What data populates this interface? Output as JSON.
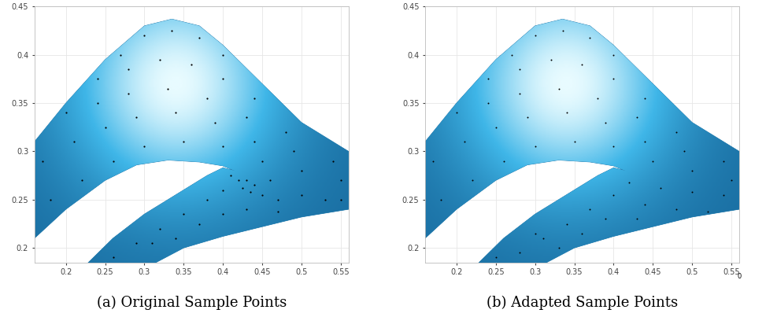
{
  "chart_data": [
    {
      "type": "scatter",
      "title": "(a) Original Sample Points",
      "xlim": [
        0.16,
        0.56
      ],
      "ylim": [
        0.185,
        0.45
      ],
      "xticks": [
        0.2,
        0.25,
        0.3,
        0.35,
        0.4,
        0.45,
        0.5,
        0.55
      ],
      "yticks": [
        0.2,
        0.25,
        0.3,
        0.35,
        0.4,
        0.45
      ],
      "grid": true,
      "tick_labels": true,
      "color": "#000000",
      "marker": "o",
      "surface": {
        "color": "#3fb6e8",
        "x": [
          0.16,
          0.2,
          0.25,
          0.3,
          0.335,
          0.37,
          0.4,
          0.45,
          0.5,
          0.56,
          0.56,
          0.5,
          0.45,
          0.4,
          0.35,
          0.28,
          0.21,
          0.26,
          0.3,
          0.35,
          0.38,
          0.4,
          0.415,
          0.4,
          0.37,
          0.33,
          0.29,
          0.25,
          0.2,
          0.16
        ],
        "y": [
          0.31,
          0.35,
          0.395,
          0.43,
          0.437,
          0.43,
          0.41,
          0.37,
          0.33,
          0.3,
          0.24,
          0.232,
          0.222,
          0.212,
          0.2,
          0.17,
          0.17,
          0.21,
          0.235,
          0.26,
          0.275,
          0.283,
          0.28,
          0.285,
          0.289,
          0.291,
          0.286,
          0.27,
          0.24,
          0.21
        ]
      },
      "x": [
        0.3,
        0.335,
        0.37,
        0.27,
        0.4,
        0.24,
        0.28,
        0.32,
        0.36,
        0.4,
        0.44,
        0.2,
        0.24,
        0.28,
        0.33,
        0.38,
        0.43,
        0.48,
        0.17,
        0.21,
        0.25,
        0.29,
        0.34,
        0.39,
        0.44,
        0.49,
        0.54,
        0.18,
        0.22,
        0.26,
        0.3,
        0.35,
        0.4,
        0.45,
        0.5,
        0.55,
        0.41,
        0.42,
        0.425,
        0.43,
        0.435,
        0.44,
        0.45,
        0.46,
        0.47,
        0.5,
        0.53,
        0.55,
        0.4,
        0.38,
        0.35,
        0.32,
        0.29,
        0.26,
        0.37,
        0.34,
        0.4,
        0.43,
        0.47,
        0.31
      ],
      "values": [
        0.42,
        0.425,
        0.418,
        0.4,
        0.4,
        0.375,
        0.385,
        0.395,
        0.39,
        0.375,
        0.355,
        0.34,
        0.35,
        0.36,
        0.365,
        0.355,
        0.335,
        0.32,
        0.29,
        0.31,
        0.325,
        0.335,
        0.34,
        0.33,
        0.31,
        0.3,
        0.29,
        0.25,
        0.27,
        0.29,
        0.305,
        0.31,
        0.305,
        0.29,
        0.28,
        0.27,
        0.275,
        0.27,
        0.262,
        0.27,
        0.258,
        0.265,
        0.255,
        0.27,
        0.25,
        0.255,
        0.25,
        0.25,
        0.26,
        0.25,
        0.235,
        0.22,
        0.205,
        0.19,
        0.225,
        0.21,
        0.235,
        0.24,
        0.238,
        0.205
      ]
    },
    {
      "type": "scatter",
      "title": "(b) Adapted Sample Points",
      "xlim": [
        0.16,
        0.56
      ],
      "ylim": [
        0.185,
        0.45
      ],
      "xticks": [
        0.2,
        0.25,
        0.3,
        0.35,
        0.4,
        0.45,
        0.5,
        0.55
      ],
      "yticks": [
        0.2,
        0.25,
        0.3,
        0.35,
        0.4,
        0.45
      ],
      "grid": true,
      "tick_labels": true,
      "color": "#000000",
      "marker": "o",
      "annotations": [
        "0"
      ],
      "surface": {
        "color": "#3fb6e8",
        "x": [
          0.16,
          0.2,
          0.25,
          0.3,
          0.335,
          0.37,
          0.4,
          0.45,
          0.5,
          0.56,
          0.56,
          0.5,
          0.45,
          0.4,
          0.35,
          0.28,
          0.21,
          0.26,
          0.3,
          0.35,
          0.38,
          0.4,
          0.415,
          0.4,
          0.37,
          0.33,
          0.29,
          0.25,
          0.2,
          0.16
        ],
        "y": [
          0.31,
          0.35,
          0.395,
          0.43,
          0.437,
          0.43,
          0.41,
          0.37,
          0.33,
          0.3,
          0.24,
          0.232,
          0.222,
          0.212,
          0.2,
          0.17,
          0.17,
          0.21,
          0.235,
          0.26,
          0.275,
          0.283,
          0.28,
          0.285,
          0.289,
          0.291,
          0.286,
          0.27,
          0.24,
          0.21
        ]
      },
      "x": [
        0.3,
        0.335,
        0.37,
        0.27,
        0.4,
        0.24,
        0.28,
        0.32,
        0.36,
        0.4,
        0.44,
        0.2,
        0.24,
        0.28,
        0.33,
        0.38,
        0.43,
        0.48,
        0.17,
        0.21,
        0.25,
        0.29,
        0.34,
        0.39,
        0.44,
        0.49,
        0.54,
        0.18,
        0.22,
        0.26,
        0.3,
        0.35,
        0.4,
        0.45,
        0.5,
        0.55,
        0.42,
        0.46,
        0.5,
        0.54,
        0.44,
        0.48,
        0.52,
        0.4,
        0.37,
        0.34,
        0.31,
        0.28,
        0.25,
        0.36,
        0.33,
        0.3,
        0.39,
        0.43
      ],
      "values": [
        0.42,
        0.425,
        0.418,
        0.4,
        0.4,
        0.375,
        0.385,
        0.395,
        0.39,
        0.375,
        0.355,
        0.34,
        0.35,
        0.36,
        0.365,
        0.355,
        0.335,
        0.32,
        0.29,
        0.31,
        0.325,
        0.335,
        0.34,
        0.33,
        0.31,
        0.3,
        0.29,
        0.25,
        0.27,
        0.29,
        0.305,
        0.31,
        0.305,
        0.29,
        0.28,
        0.27,
        0.268,
        0.262,
        0.258,
        0.255,
        0.245,
        0.24,
        0.238,
        0.255,
        0.24,
        0.225,
        0.21,
        0.195,
        0.19,
        0.215,
        0.2,
        0.215,
        0.23,
        0.23
      ]
    }
  ]
}
